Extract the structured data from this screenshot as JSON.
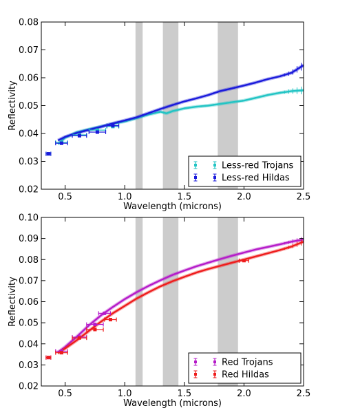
{
  "chart_data": [
    {
      "type": "line",
      "xlabel": "Wavelength (microns)",
      "ylabel": "Reflectivity",
      "xlim": [
        0.3,
        2.5
      ],
      "ylim": [
        0.02,
        0.08
      ],
      "xticks": [
        "0.5",
        "1.0",
        "1.5",
        "2.0",
        "2.5"
      ],
      "yticks": [
        "0.02",
        "0.03",
        "0.04",
        "0.05",
        "0.06",
        "0.07",
        "0.08"
      ],
      "shaded_bands": [
        [
          1.09,
          1.15
        ],
        [
          1.32,
          1.45
        ],
        [
          1.78,
          1.95
        ]
      ],
      "band_color": "#cccccc",
      "legend_position": "lower-right",
      "series": [
        {
          "name": "Less-red Trojans",
          "color": "#22c4c4",
          "x": [
            0.44,
            0.5,
            0.6,
            0.7,
            0.8,
            0.9,
            1.0,
            1.1,
            1.2,
            1.3,
            1.35,
            1.4,
            1.5,
            1.6,
            1.7,
            1.8,
            1.9,
            2.0,
            2.1,
            2.2,
            2.3,
            2.4,
            2.5
          ],
          "y": [
            0.0362,
            0.0385,
            0.0405,
            0.0415,
            0.0425,
            0.0435,
            0.0443,
            0.0455,
            0.0468,
            0.0478,
            0.0472,
            0.048,
            0.049,
            0.0496,
            0.05,
            0.0506,
            0.0512,
            0.0518,
            0.0528,
            0.0538,
            0.0546,
            0.0552,
            0.0555
          ]
        },
        {
          "name": "Less-red Hildas",
          "color": "#1a1adb",
          "x": [
            0.44,
            0.5,
            0.6,
            0.7,
            0.8,
            0.9,
            1.0,
            1.1,
            1.2,
            1.3,
            1.4,
            1.5,
            1.6,
            1.7,
            1.8,
            1.9,
            2.0,
            2.1,
            2.2,
            2.3,
            2.4,
            2.5
          ],
          "y": [
            0.0375,
            0.0388,
            0.0402,
            0.0413,
            0.0424,
            0.0436,
            0.0447,
            0.0458,
            0.0473,
            0.0488,
            0.0502,
            0.0515,
            0.0526,
            0.0538,
            0.0552,
            0.0562,
            0.0572,
            0.0583,
            0.0595,
            0.0605,
            0.0618,
            0.0645
          ]
        }
      ],
      "photometry": [
        {
          "series": "Less-red Trojans",
          "x": 0.36,
          "y": 0.0327,
          "xerr": 0.02
        },
        {
          "series": "Less-red Hildas",
          "x": 0.36,
          "y": 0.0327,
          "xerr": 0.02
        },
        {
          "series": "Less-red Trojans",
          "x": 0.47,
          "y": 0.0368,
          "xerr": 0.05
        },
        {
          "series": "Less-red Hildas",
          "x": 0.47,
          "y": 0.0365,
          "xerr": 0.05
        },
        {
          "series": "Less-red Trojans",
          "x": 0.62,
          "y": 0.0395,
          "xerr": 0.06
        },
        {
          "series": "Less-red Hildas",
          "x": 0.62,
          "y": 0.0392,
          "xerr": 0.06
        },
        {
          "series": "Less-red Trojans",
          "x": 0.77,
          "y": 0.0412,
          "xerr": 0.07
        },
        {
          "series": "Less-red Hildas",
          "x": 0.77,
          "y": 0.0405,
          "xerr": 0.07
        },
        {
          "series": "Less-red Trojans",
          "x": 0.9,
          "y": 0.0425,
          "xerr": 0.05
        },
        {
          "series": "Less-red Hildas",
          "x": 0.9,
          "y": 0.0428,
          "xerr": 0.05
        }
      ]
    },
    {
      "type": "line",
      "xlabel": "Wavelength (microns)",
      "ylabel": "Reflectivity",
      "xlim": [
        0.3,
        2.5
      ],
      "ylim": [
        0.02,
        0.1
      ],
      "xticks": [
        "0.5",
        "1.0",
        "1.5",
        "2.0",
        "2.5"
      ],
      "yticks": [
        "0.02",
        "0.03",
        "0.04",
        "0.05",
        "0.06",
        "0.07",
        "0.08",
        "0.09",
        "0.10"
      ],
      "shaded_bands": [
        [
          1.09,
          1.15
        ],
        [
          1.32,
          1.45
        ],
        [
          1.78,
          1.95
        ]
      ],
      "band_color": "#cccccc",
      "legend_position": "lower-right",
      "series": [
        {
          "name": "Red Trojans",
          "color": "#b51bc9",
          "x": [
            0.44,
            0.5,
            0.6,
            0.7,
            0.8,
            0.9,
            1.0,
            1.1,
            1.2,
            1.3,
            1.4,
            1.5,
            1.6,
            1.7,
            1.8,
            1.9,
            2.0,
            2.1,
            2.2,
            2.3,
            2.4,
            2.5
          ],
          "y": [
            0.036,
            0.0385,
            0.0435,
            0.0488,
            0.0535,
            0.0575,
            0.0612,
            0.0645,
            0.0675,
            0.0702,
            0.0727,
            0.0748,
            0.0768,
            0.0785,
            0.0802,
            0.0818,
            0.0833,
            0.0848,
            0.086,
            0.0872,
            0.0885,
            0.0895
          ]
        },
        {
          "name": "Red Hildas",
          "color": "#ee1c1c",
          "x": [
            0.44,
            0.5,
            0.6,
            0.7,
            0.8,
            0.9,
            1.0,
            1.1,
            1.2,
            1.3,
            1.4,
            1.5,
            1.6,
            1.7,
            1.8,
            1.9,
            2.0,
            2.1,
            2.2,
            2.3,
            2.4,
            2.5
          ],
          "y": [
            0.0355,
            0.0378,
            0.0418,
            0.0462,
            0.0505,
            0.0545,
            0.058,
            0.0615,
            0.0645,
            0.0673,
            0.0697,
            0.0718,
            0.0738,
            0.0755,
            0.077,
            0.0785,
            0.08,
            0.0815,
            0.083,
            0.0845,
            0.0862,
            0.0885
          ]
        }
      ],
      "photometry": [
        {
          "series": "Red Trojans",
          "x": 0.36,
          "y": 0.0335,
          "xerr": 0.02
        },
        {
          "series": "Red Hildas",
          "x": 0.36,
          "y": 0.0335,
          "xerr": 0.02
        },
        {
          "series": "Red Trojans",
          "x": 0.47,
          "y": 0.0365,
          "xerr": 0.05
        },
        {
          "series": "Red Hildas",
          "x": 0.47,
          "y": 0.0358,
          "xerr": 0.05
        },
        {
          "series": "Red Trojans",
          "x": 0.62,
          "y": 0.0432,
          "xerr": 0.06
        },
        {
          "series": "Red Hildas",
          "x": 0.62,
          "y": 0.0428,
          "xerr": 0.06
        },
        {
          "series": "Red Trojans",
          "x": 0.75,
          "y": 0.0492,
          "xerr": 0.07
        },
        {
          "series": "Red Hildas",
          "x": 0.75,
          "y": 0.0468,
          "xerr": 0.07
        },
        {
          "series": "Red Trojans",
          "x": 0.83,
          "y": 0.0545,
          "xerr": 0.05
        },
        {
          "series": "Red Hildas",
          "x": 0.88,
          "y": 0.0515,
          "xerr": 0.05
        },
        {
          "series": "Red Hildas",
          "x": 2.0,
          "y": 0.0795,
          "xerr": 0.04
        }
      ]
    }
  ]
}
